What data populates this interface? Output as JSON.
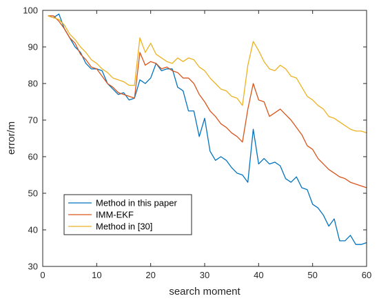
{
  "chart_data": {
    "type": "line",
    "title": "",
    "xlabel": "search moment",
    "ylabel": "error/m",
    "xlim": [
      0,
      60
    ],
    "ylim": [
      30,
      100
    ],
    "xticks": [
      0,
      10,
      20,
      30,
      40,
      50,
      60
    ],
    "yticks": [
      30,
      40,
      50,
      60,
      70,
      80,
      90,
      100
    ],
    "grid": false,
    "legend_position": "bottom-left",
    "x": [
      1,
      2,
      3,
      4,
      5,
      6,
      7,
      8,
      9,
      10,
      11,
      12,
      13,
      14,
      15,
      16,
      17,
      18,
      19,
      20,
      21,
      22,
      23,
      24,
      25,
      26,
      27,
      28,
      29,
      30,
      31,
      32,
      33,
      34,
      35,
      36,
      37,
      38,
      39,
      40,
      41,
      42,
      43,
      44,
      45,
      46,
      47,
      48,
      49,
      50,
      51,
      52,
      53,
      54,
      55,
      56,
      57,
      58,
      59,
      60
    ],
    "series": [
      {
        "name": "Method in this paper",
        "color": "#0072BD",
        "values": [
          98.5,
          98.0,
          99.0,
          95.0,
          92.5,
          90.0,
          88.5,
          85.5,
          84.0,
          84.0,
          83.5,
          80.0,
          78.5,
          77.0,
          77.5,
          75.5,
          76.0,
          81.0,
          80.0,
          81.5,
          85.5,
          83.5,
          84.0,
          84.0,
          79.0,
          78.0,
          72.5,
          72.5,
          65.5,
          70.5,
          61.5,
          59.0,
          60.0,
          59.0,
          57.0,
          55.5,
          55.0,
          53.0,
          67.5,
          58.0,
          59.5,
          58.0,
          58.5,
          57.5,
          54.0,
          53.0,
          54.5,
          51.5,
          51.0,
          47.0,
          46.0,
          44.0,
          41.0,
          43.0,
          37.0,
          37.0,
          38.5,
          36.0,
          36.0,
          36.5
        ]
      },
      {
        "name": "IMM-EKF",
        "color": "#D95319",
        "values": [
          98.5,
          98.5,
          97.0,
          95.0,
          92.5,
          91.0,
          88.0,
          86.5,
          84.5,
          84.0,
          82.0,
          80.0,
          79.0,
          77.5,
          77.0,
          76.5,
          76.0,
          88.5,
          85.0,
          86.0,
          85.5,
          84.0,
          84.5,
          83.5,
          83.0,
          81.5,
          81.5,
          80.0,
          77.0,
          75.0,
          72.5,
          71.0,
          69.0,
          68.0,
          66.5,
          65.5,
          64.0,
          73.0,
          80.0,
          75.5,
          75.0,
          71.0,
          72.0,
          73.0,
          71.5,
          70.0,
          68.0,
          66.0,
          63.0,
          62.0,
          59.5,
          58.0,
          56.5,
          55.5,
          54.5,
          54.0,
          53.0,
          52.5,
          52.0,
          51.5
        ]
      },
      {
        "name": "Method in [30]",
        "color": "#EDB120",
        "values": [
          98.5,
          98.0,
          97.5,
          96.0,
          93.5,
          92.0,
          90.0,
          88.5,
          86.5,
          85.5,
          84.0,
          83.0,
          81.5,
          81.0,
          80.5,
          79.5,
          79.5,
          92.5,
          88.5,
          91.0,
          88.0,
          87.0,
          86.0,
          85.5,
          87.0,
          86.0,
          87.0,
          86.5,
          84.5,
          83.5,
          81.5,
          80.0,
          78.5,
          78.0,
          76.5,
          76.0,
          74.0,
          85.0,
          91.5,
          89.0,
          86.0,
          84.0,
          83.5,
          85.0,
          84.0,
          82.0,
          81.5,
          79.0,
          76.5,
          75.5,
          74.0,
          73.0,
          71.0,
          70.5,
          69.5,
          68.5,
          67.5,
          67.0,
          67.0,
          66.5
        ]
      }
    ]
  }
}
